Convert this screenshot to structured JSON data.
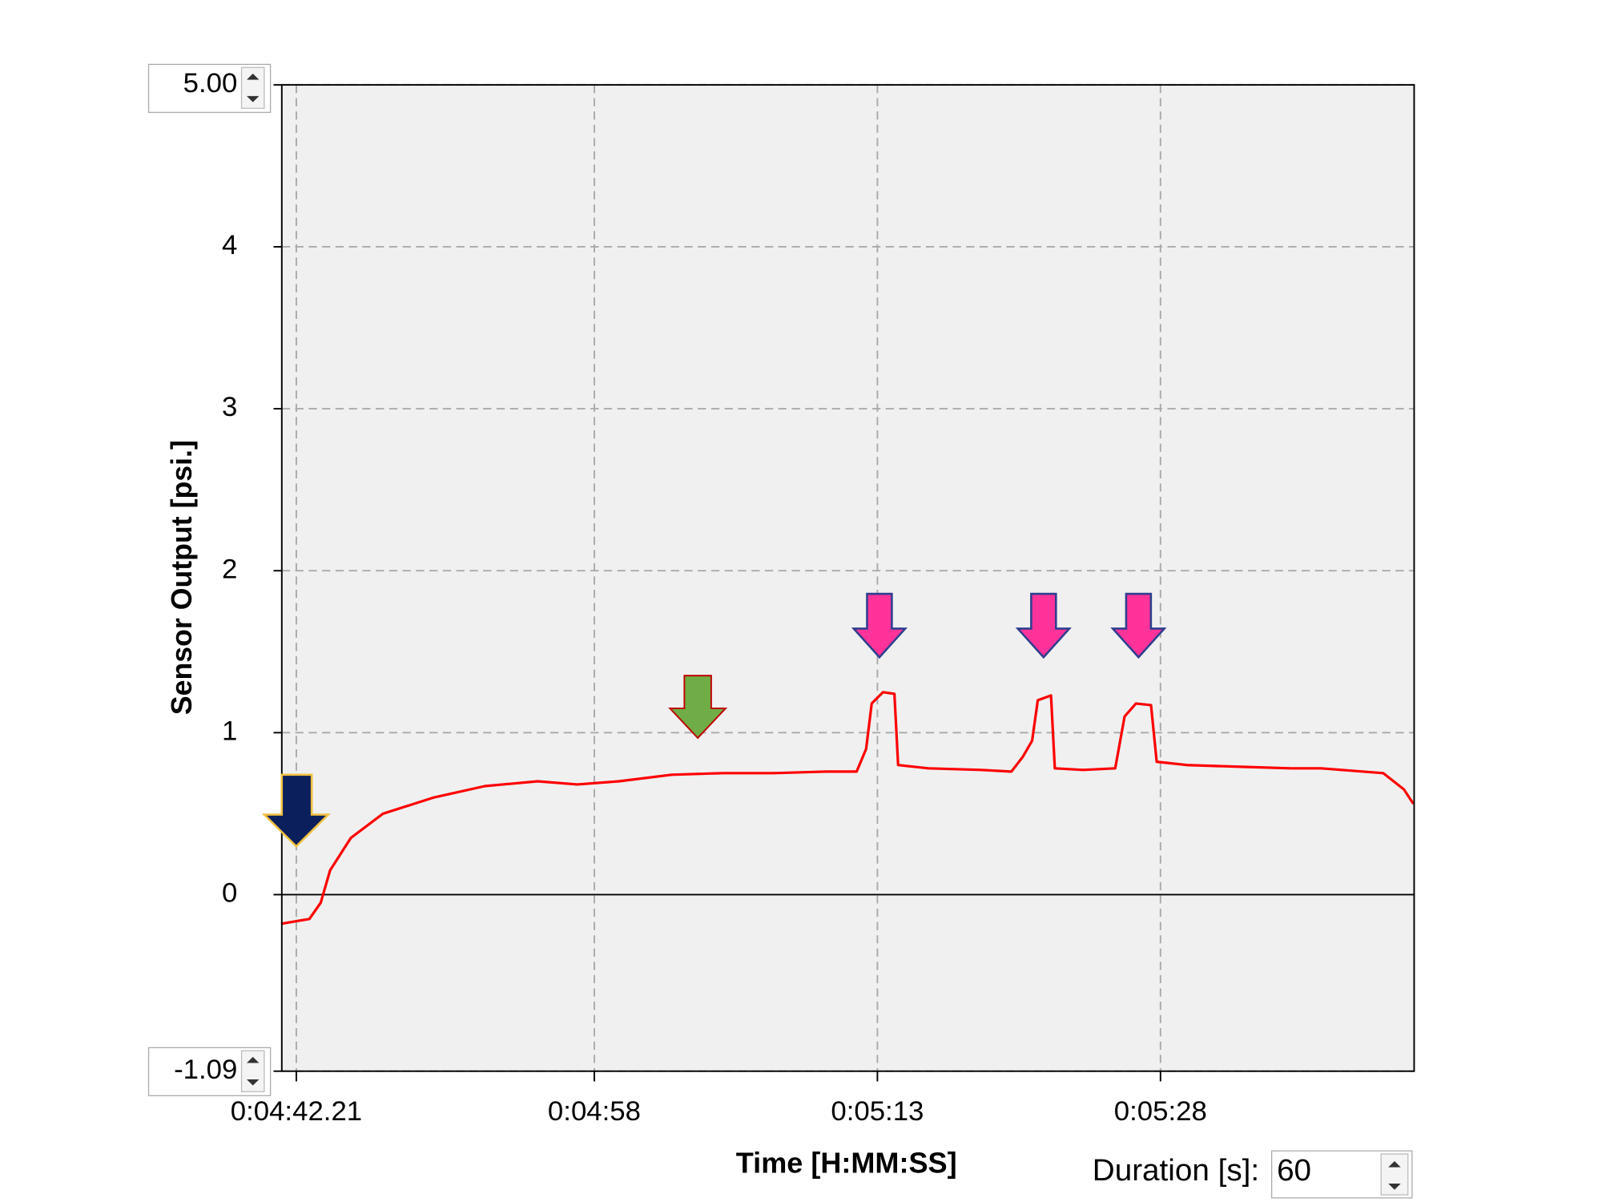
{
  "chart_data": {
    "type": "line",
    "ylabel": "Sensor Output [psi.]",
    "xlabel": "Time [H:MM:SS]",
    "duration_label": "Duration [s]:",
    "duration_value": 60,
    "xlim": [
      281.44,
      341.44
    ],
    "xticks": [
      {
        "value": 282.21,
        "label": "0:04:42.21"
      },
      {
        "value": 298,
        "label": "0:04:58"
      },
      {
        "value": 313,
        "label": "0:05:13"
      },
      {
        "value": 328,
        "label": "0:05:28"
      }
    ],
    "ylim": [
      -1.09,
      5
    ],
    "yticks": [
      {
        "value": 5,
        "label": "5.00"
      },
      4,
      3,
      2,
      1,
      0,
      -1.09
    ],
    "grid": true,
    "series": [
      {
        "name": "Sensor Output",
        "color": "#ff0000",
        "x": [
          281.4,
          282.9,
          283.5,
          284.0,
          285.1,
          286.8,
          289.5,
          292.2,
          295.0,
          297.1,
          299.3,
          302.1,
          304.8,
          307.5,
          310.3,
          311.9,
          312.4,
          312.7,
          313.3,
          313.9,
          314.1,
          315.7,
          318.5,
          320.1,
          320.7,
          321.2,
          321.5,
          322.2,
          322.4,
          323.9,
          325.6,
          326.1,
          326.7,
          327.5,
          327.8,
          329.4,
          332.1,
          334.9,
          336.5,
          337.6,
          339.8,
          340.9,
          341.4
        ],
        "values": [
          -0.18,
          -0.15,
          -0.05,
          0.15,
          0.35,
          0.5,
          0.6,
          0.67,
          0.7,
          0.68,
          0.7,
          0.74,
          0.75,
          0.75,
          0.76,
          0.76,
          0.9,
          1.18,
          1.25,
          1.24,
          0.8,
          0.78,
          0.77,
          0.76,
          0.85,
          0.95,
          1.2,
          1.23,
          0.78,
          0.77,
          0.78,
          1.1,
          1.18,
          1.17,
          0.82,
          0.8,
          0.79,
          0.78,
          0.78,
          0.77,
          0.75,
          0.65,
          0.56
        ]
      }
    ]
  }
}
